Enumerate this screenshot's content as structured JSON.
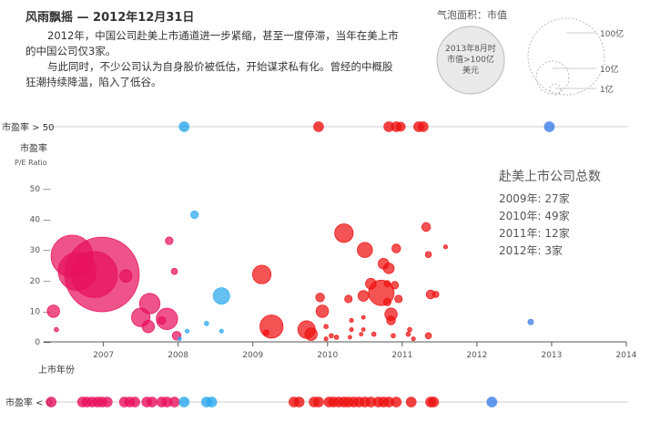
{
  "header": {
    "title": "风雨飘摇 — 2012年12月31日",
    "para1": "2012年，中国公司赴美上市通道进一步紧缩，甚至一度停滞，当年在美上市的中国公司仅3家。",
    "para2": "与此同时，不少公司认为自身股价被低估，开始谋求私有化。曾经的中概股狂潮持续降温，陷入了低谷。"
  },
  "legend": {
    "title": "气泡面积：市值",
    "note": "2013年8月时市值>100亿美元",
    "sizes": [
      {
        "label": "100亿",
        "value": 100
      },
      {
        "label": "10亿",
        "value": 10
      },
      {
        "label": "1亿",
        "value": 1
      }
    ]
  },
  "stats": {
    "title": "赴美上市公司总数",
    "lines": [
      {
        "year_label": "2009年:",
        "count_label": "27家"
      },
      {
        "year_label": "2010年:",
        "count_label": "49家"
      },
      {
        "year_label": "2011年:",
        "count_label": "12家"
      },
      {
        "year_label": "2012年:",
        "count_label": "3家"
      }
    ]
  },
  "colors": {
    "pink": "#e8105c",
    "red": "#ee1111",
    "lightblue": "#2aa8ee",
    "blue": "#3a7de8",
    "axis": "#555555",
    "row_line": "#cccccc"
  },
  "chart_data": {
    "type": "scatter",
    "ylabel": "市盈率",
    "ylabel_sub": "P/E Ratio",
    "xlabel": "上市年份",
    "top_row_label": "市盈率 > 50",
    "bottom_row_label": "市盈率 < 0",
    "xlim": [
      2006.2,
      2014
    ],
    "ylim": [
      0,
      50
    ],
    "yticks": [
      0,
      10,
      20,
      30,
      40,
      50
    ],
    "ytick_labels": [
      "0 —",
      "10 —",
      "20 —",
      "30 —",
      "40 —",
      "50 —"
    ],
    "xticks": [
      2007,
      2008,
      2009,
      2010,
      2011,
      2012,
      2013,
      2014
    ],
    "xtick_labels": [
      "2007",
      "2008",
      "2009",
      "2010",
      "2011",
      "2012",
      "2013",
      "2014"
    ],
    "points": [
      {
        "x": 2006.58,
        "y": 28,
        "cap": 46,
        "color": "pink"
      },
      {
        "x": 2006.65,
        "y": 23,
        "cap": 38,
        "color": "pink"
      },
      {
        "x": 2006.98,
        "y": 22,
        "cap": 145,
        "color": "pink"
      },
      {
        "x": 2006.88,
        "y": 22,
        "cap": 55,
        "color": "pink"
      },
      {
        "x": 2007.3,
        "y": 21.5,
        "cap": 4,
        "color": "pink"
      },
      {
        "x": 2006.33,
        "y": 10,
        "cap": 4,
        "color": "pink"
      },
      {
        "x": 2006.37,
        "y": 4,
        "cap": 0.5,
        "color": "pink"
      },
      {
        "x": 2007.62,
        "y": 12.5,
        "cap": 11,
        "color": "pink"
      },
      {
        "x": 2007.5,
        "y": 8,
        "cap": 9,
        "color": "pink"
      },
      {
        "x": 2007.6,
        "y": 5,
        "cap": 4,
        "color": "pink"
      },
      {
        "x": 2007.85,
        "y": 7.5,
        "cap": 12,
        "color": "pink"
      },
      {
        "x": 2007.78,
        "y": 7,
        "cap": 1.5,
        "color": "pink"
      },
      {
        "x": 2007.88,
        "y": 33,
        "cap": 1.5,
        "color": "pink"
      },
      {
        "x": 2007.95,
        "y": 23,
        "cap": 1,
        "color": "pink"
      },
      {
        "x": 2007.98,
        "y": 2,
        "cap": 2,
        "color": "pink"
      },
      {
        "x": 2008.02,
        "y": 1,
        "cap": 0.3,
        "color": "lightblue"
      },
      {
        "x": 2008.22,
        "y": 41.5,
        "cap": 1.5,
        "color": "lightblue"
      },
      {
        "x": 2008.12,
        "y": 3.5,
        "cap": 0.4,
        "color": "lightblue"
      },
      {
        "x": 2008.38,
        "y": 6,
        "cap": 0.5,
        "color": "lightblue"
      },
      {
        "x": 2008.58,
        "y": 15,
        "cap": 7,
        "color": "lightblue"
      },
      {
        "x": 2008.58,
        "y": 3.5,
        "cap": 0.4,
        "color": "lightblue"
      },
      {
        "x": 2009.12,
        "y": 22,
        "cap": 9,
        "color": "red"
      },
      {
        "x": 2009.25,
        "y": 5,
        "cap": 14,
        "color": "red"
      },
      {
        "x": 2009.18,
        "y": 3,
        "cap": 0.8,
        "color": "red"
      },
      {
        "x": 2009.72,
        "y": 4,
        "cap": 8,
        "color": "red"
      },
      {
        "x": 2009.78,
        "y": 2.5,
        "cap": 4,
        "color": "red"
      },
      {
        "x": 2009.9,
        "y": 14.5,
        "cap": 2,
        "color": "red"
      },
      {
        "x": 2009.93,
        "y": 10,
        "cap": 4,
        "color": "red"
      },
      {
        "x": 2009.98,
        "y": 5,
        "cap": 0.5,
        "color": "red"
      },
      {
        "x": 2010.05,
        "y": 2,
        "cap": 0.5,
        "color": "red"
      },
      {
        "x": 2009.98,
        "y": 1,
        "cap": 0.4,
        "color": "red"
      },
      {
        "x": 2010.12,
        "y": 1.5,
        "cap": 0.5,
        "color": "red"
      },
      {
        "x": 2010.22,
        "y": 35.5,
        "cap": 9,
        "color": "red"
      },
      {
        "x": 2010.28,
        "y": 14,
        "cap": 1.5,
        "color": "red"
      },
      {
        "x": 2010.32,
        "y": 7,
        "cap": 0.4,
        "color": "red"
      },
      {
        "x": 2010.32,
        "y": 4,
        "cap": 0.4,
        "color": "red"
      },
      {
        "x": 2010.3,
        "y": 1.5,
        "cap": 0.3,
        "color": "red"
      },
      {
        "x": 2010.48,
        "y": 4,
        "cap": 0.3,
        "color": "red"
      },
      {
        "x": 2010.45,
        "y": 2.5,
        "cap": 0.3,
        "color": "red"
      },
      {
        "x": 2010.48,
        "y": 8,
        "cap": 0.3,
        "color": "red"
      },
      {
        "x": 2010.5,
        "y": 30,
        "cap": 6,
        "color": "red"
      },
      {
        "x": 2010.48,
        "y": 15,
        "cap": 3,
        "color": "red"
      },
      {
        "x": 2010.58,
        "y": 19,
        "cap": 3,
        "color": "red"
      },
      {
        "x": 2010.62,
        "y": 2.5,
        "cap": 0.5,
        "color": "red"
      },
      {
        "x": 2010.72,
        "y": 16,
        "cap": 17,
        "color": "red"
      },
      {
        "x": 2010.75,
        "y": 25.5,
        "cap": 3,
        "color": "red"
      },
      {
        "x": 2010.8,
        "y": 19,
        "cap": 1,
        "color": "red"
      },
      {
        "x": 2010.8,
        "y": 13,
        "cap": 1.5,
        "color": "red"
      },
      {
        "x": 2010.82,
        "y": 24,
        "cap": 3,
        "color": "red"
      },
      {
        "x": 2010.85,
        "y": 9,
        "cap": 4,
        "color": "red"
      },
      {
        "x": 2010.85,
        "y": 7,
        "cap": 2,
        "color": "red"
      },
      {
        "x": 2010.88,
        "y": 2,
        "cap": 0.5,
        "color": "red"
      },
      {
        "x": 2010.9,
        "y": 18.5,
        "cap": 1.5,
        "color": "red"
      },
      {
        "x": 2010.92,
        "y": 30.5,
        "cap": 2,
        "color": "red"
      },
      {
        "x": 2010.95,
        "y": 14,
        "cap": 1.5,
        "color": "red"
      },
      {
        "x": 2011.08,
        "y": 2.5,
        "cap": 0.5,
        "color": "red"
      },
      {
        "x": 2011.1,
        "y": 4,
        "cap": 0.5,
        "color": "red"
      },
      {
        "x": 2011.15,
        "y": 1,
        "cap": 0.4,
        "color": "red"
      },
      {
        "x": 2011.32,
        "y": 37.5,
        "cap": 2,
        "color": "red"
      },
      {
        "x": 2011.35,
        "y": 28.5,
        "cap": 1,
        "color": "red"
      },
      {
        "x": 2011.38,
        "y": 15.5,
        "cap": 2,
        "color": "red"
      },
      {
        "x": 2011.45,
        "y": 15.5,
        "cap": 1,
        "color": "red"
      },
      {
        "x": 2011.35,
        "y": 2,
        "cap": 1,
        "color": "red"
      },
      {
        "x": 2011.58,
        "y": 31,
        "cap": 0.4,
        "color": "red"
      },
      {
        "x": 2012.72,
        "y": 6.5,
        "cap": 0.8,
        "color": "blue"
      }
    ],
    "top_row": [
      {
        "x": 2008.08,
        "cap": 3,
        "color": "lightblue"
      },
      {
        "x": 2009.88,
        "cap": 3,
        "color": "red"
      },
      {
        "x": 2010.82,
        "cap": 3,
        "color": "red"
      },
      {
        "x": 2010.92,
        "cap": 3,
        "color": "red"
      },
      {
        "x": 2010.98,
        "cap": 2.5,
        "color": "red"
      },
      {
        "x": 2011.22,
        "cap": 3,
        "color": "red"
      },
      {
        "x": 2011.28,
        "cap": 3,
        "color": "red"
      },
      {
        "x": 2012.97,
        "cap": 3,
        "color": "blue"
      }
    ],
    "bottom_row": [
      {
        "x": 2006.3,
        "cap": 3,
        "color": "pink"
      },
      {
        "x": 2006.72,
        "cap": 3,
        "color": "pink"
      },
      {
        "x": 2006.78,
        "cap": 3,
        "color": "pink"
      },
      {
        "x": 2006.85,
        "cap": 3,
        "color": "pink"
      },
      {
        "x": 2006.92,
        "cap": 3,
        "color": "pink"
      },
      {
        "x": 2006.98,
        "cap": 3,
        "color": "pink"
      },
      {
        "x": 2007.05,
        "cap": 3,
        "color": "pink"
      },
      {
        "x": 2007.28,
        "cap": 3,
        "color": "pink"
      },
      {
        "x": 2007.35,
        "cap": 3,
        "color": "pink"
      },
      {
        "x": 2007.42,
        "cap": 3,
        "color": "pink"
      },
      {
        "x": 2007.58,
        "cap": 3,
        "color": "pink"
      },
      {
        "x": 2007.65,
        "cap": 3,
        "color": "pink"
      },
      {
        "x": 2007.78,
        "cap": 3,
        "color": "pink"
      },
      {
        "x": 2007.85,
        "cap": 3,
        "color": "pink"
      },
      {
        "x": 2007.95,
        "cap": 3,
        "color": "pink"
      },
      {
        "x": 2008.08,
        "cap": 3,
        "color": "lightblue"
      },
      {
        "x": 2008.38,
        "cap": 3,
        "color": "lightblue"
      },
      {
        "x": 2008.45,
        "cap": 3,
        "color": "lightblue"
      },
      {
        "x": 2009.55,
        "cap": 3,
        "color": "red"
      },
      {
        "x": 2009.62,
        "cap": 3,
        "color": "red"
      },
      {
        "x": 2009.82,
        "cap": 3,
        "color": "red"
      },
      {
        "x": 2009.88,
        "cap": 3,
        "color": "red"
      },
      {
        "x": 2010.02,
        "cap": 3,
        "color": "red"
      },
      {
        "x": 2010.08,
        "cap": 3,
        "color": "red"
      },
      {
        "x": 2010.15,
        "cap": 3,
        "color": "red"
      },
      {
        "x": 2010.22,
        "cap": 3,
        "color": "red"
      },
      {
        "x": 2010.28,
        "cap": 3,
        "color": "red"
      },
      {
        "x": 2010.35,
        "cap": 3,
        "color": "red"
      },
      {
        "x": 2010.42,
        "cap": 3,
        "color": "red"
      },
      {
        "x": 2010.5,
        "cap": 3,
        "color": "red"
      },
      {
        "x": 2010.58,
        "cap": 3,
        "color": "red"
      },
      {
        "x": 2010.68,
        "cap": 3,
        "color": "red"
      },
      {
        "x": 2010.75,
        "cap": 3,
        "color": "red"
      },
      {
        "x": 2010.82,
        "cap": 3,
        "color": "red"
      },
      {
        "x": 2010.92,
        "cap": 3,
        "color": "red"
      },
      {
        "x": 2011.12,
        "cap": 3,
        "color": "red"
      },
      {
        "x": 2011.38,
        "cap": 3,
        "color": "red"
      },
      {
        "x": 2011.42,
        "cap": 3,
        "color": "red"
      },
      {
        "x": 2012.2,
        "cap": 3,
        "color": "blue"
      }
    ]
  }
}
